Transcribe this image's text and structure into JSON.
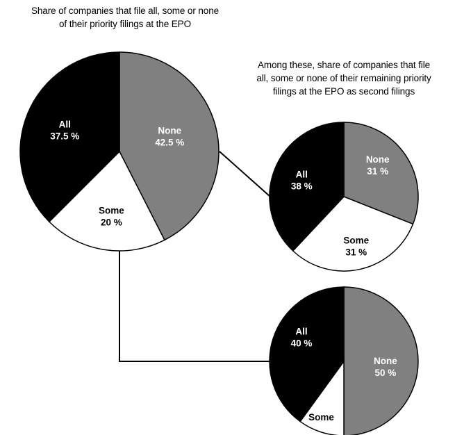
{
  "colors": {
    "all": "#000000",
    "some": "#ffffff",
    "none": "#808080",
    "outline": "#000000",
    "label_on_dark": "#ffffff",
    "label_on_light": "#000000"
  },
  "captions": {
    "main_line1": "Share of companies that file all, some or none",
    "main_line2": "of their priority filings at the EPO",
    "second_line1": "Among these, share of companies that file",
    "second_line2": "all, some or none of their remaining priority",
    "second_line3": "filings at the EPO as second filings"
  },
  "chart_data": [
    {
      "type": "pie",
      "title": "Share of companies that file all, some or none of their priority filings at the EPO",
      "labels": [
        "None",
        "Some",
        "All"
      ],
      "values": [
        42.5,
        20,
        37.5
      ],
      "value_labels": [
        "42.5 %",
        "20 %",
        "37.5 %"
      ],
      "legend": "none"
    },
    {
      "type": "pie",
      "title": "Among these, share of companies that file all, some or none of their remaining priority filings at the EPO as second filings",
      "labels": [
        "None",
        "Some",
        "All"
      ],
      "values": [
        31,
        31,
        38
      ],
      "value_labels": [
        "31 %",
        "31 %",
        "38 %"
      ],
      "legend": "none"
    },
    {
      "type": "pie",
      "title": "",
      "labels": [
        "None",
        "Some",
        "All"
      ],
      "values": [
        50,
        10,
        40
      ],
      "value_labels": [
        "50 %",
        "",
        "40 %"
      ],
      "legend": "none"
    }
  ]
}
